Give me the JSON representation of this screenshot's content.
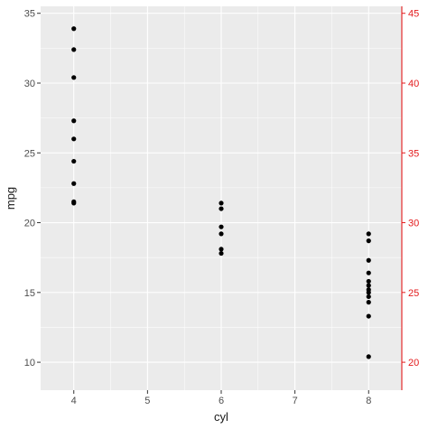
{
  "chart_data": {
    "type": "scatter",
    "title": "",
    "xlabel": "cyl",
    "ylabel": "mpg",
    "xlim": [
      3.55,
      8.45
    ],
    "ylim": [
      8.0,
      35.5
    ],
    "x_ticks": [
      4,
      5,
      6,
      7,
      8
    ],
    "x_tick_labels": [
      "4",
      "5",
      "6",
      "7",
      "8"
    ],
    "y_ticks": [
      10,
      15,
      20,
      25,
      30,
      35
    ],
    "y_tick_labels": [
      "10",
      "15",
      "20",
      "25",
      "30",
      "35"
    ],
    "secondary_y": {
      "offset": 10,
      "ticks": [
        20,
        25,
        30,
        35,
        40,
        45
      ],
      "tick_labels": [
        "20",
        "25",
        "30",
        "35",
        "40",
        "45"
      ],
      "color": "#e31a1c"
    },
    "points": [
      {
        "x": 4,
        "y": 33.9
      },
      {
        "x": 4,
        "y": 32.4
      },
      {
        "x": 4,
        "y": 30.4
      },
      {
        "x": 4,
        "y": 27.3
      },
      {
        "x": 4,
        "y": 26.0
      },
      {
        "x": 4,
        "y": 24.4
      },
      {
        "x": 4,
        "y": 22.8
      },
      {
        "x": 4,
        "y": 21.5
      },
      {
        "x": 4,
        "y": 21.4
      },
      {
        "x": 6,
        "y": 21.4
      },
      {
        "x": 6,
        "y": 21.0
      },
      {
        "x": 6,
        "y": 19.7
      },
      {
        "x": 6,
        "y": 19.2
      },
      {
        "x": 6,
        "y": 18.1
      },
      {
        "x": 6,
        "y": 17.8
      },
      {
        "x": 8,
        "y": 19.2
      },
      {
        "x": 8,
        "y": 18.7
      },
      {
        "x": 8,
        "y": 17.3
      },
      {
        "x": 8,
        "y": 16.4
      },
      {
        "x": 8,
        "y": 15.8
      },
      {
        "x": 8,
        "y": 15.5
      },
      {
        "x": 8,
        "y": 15.2
      },
      {
        "x": 8,
        "y": 15.0
      },
      {
        "x": 8,
        "y": 14.7
      },
      {
        "x": 8,
        "y": 14.3
      },
      {
        "x": 8,
        "y": 13.3
      },
      {
        "x": 8,
        "y": 10.4
      }
    ],
    "grid": true,
    "legend": "none",
    "colors": {
      "panel_bg": "#ebebeb",
      "grid_major": "#ffffff",
      "point": "#000000"
    }
  }
}
